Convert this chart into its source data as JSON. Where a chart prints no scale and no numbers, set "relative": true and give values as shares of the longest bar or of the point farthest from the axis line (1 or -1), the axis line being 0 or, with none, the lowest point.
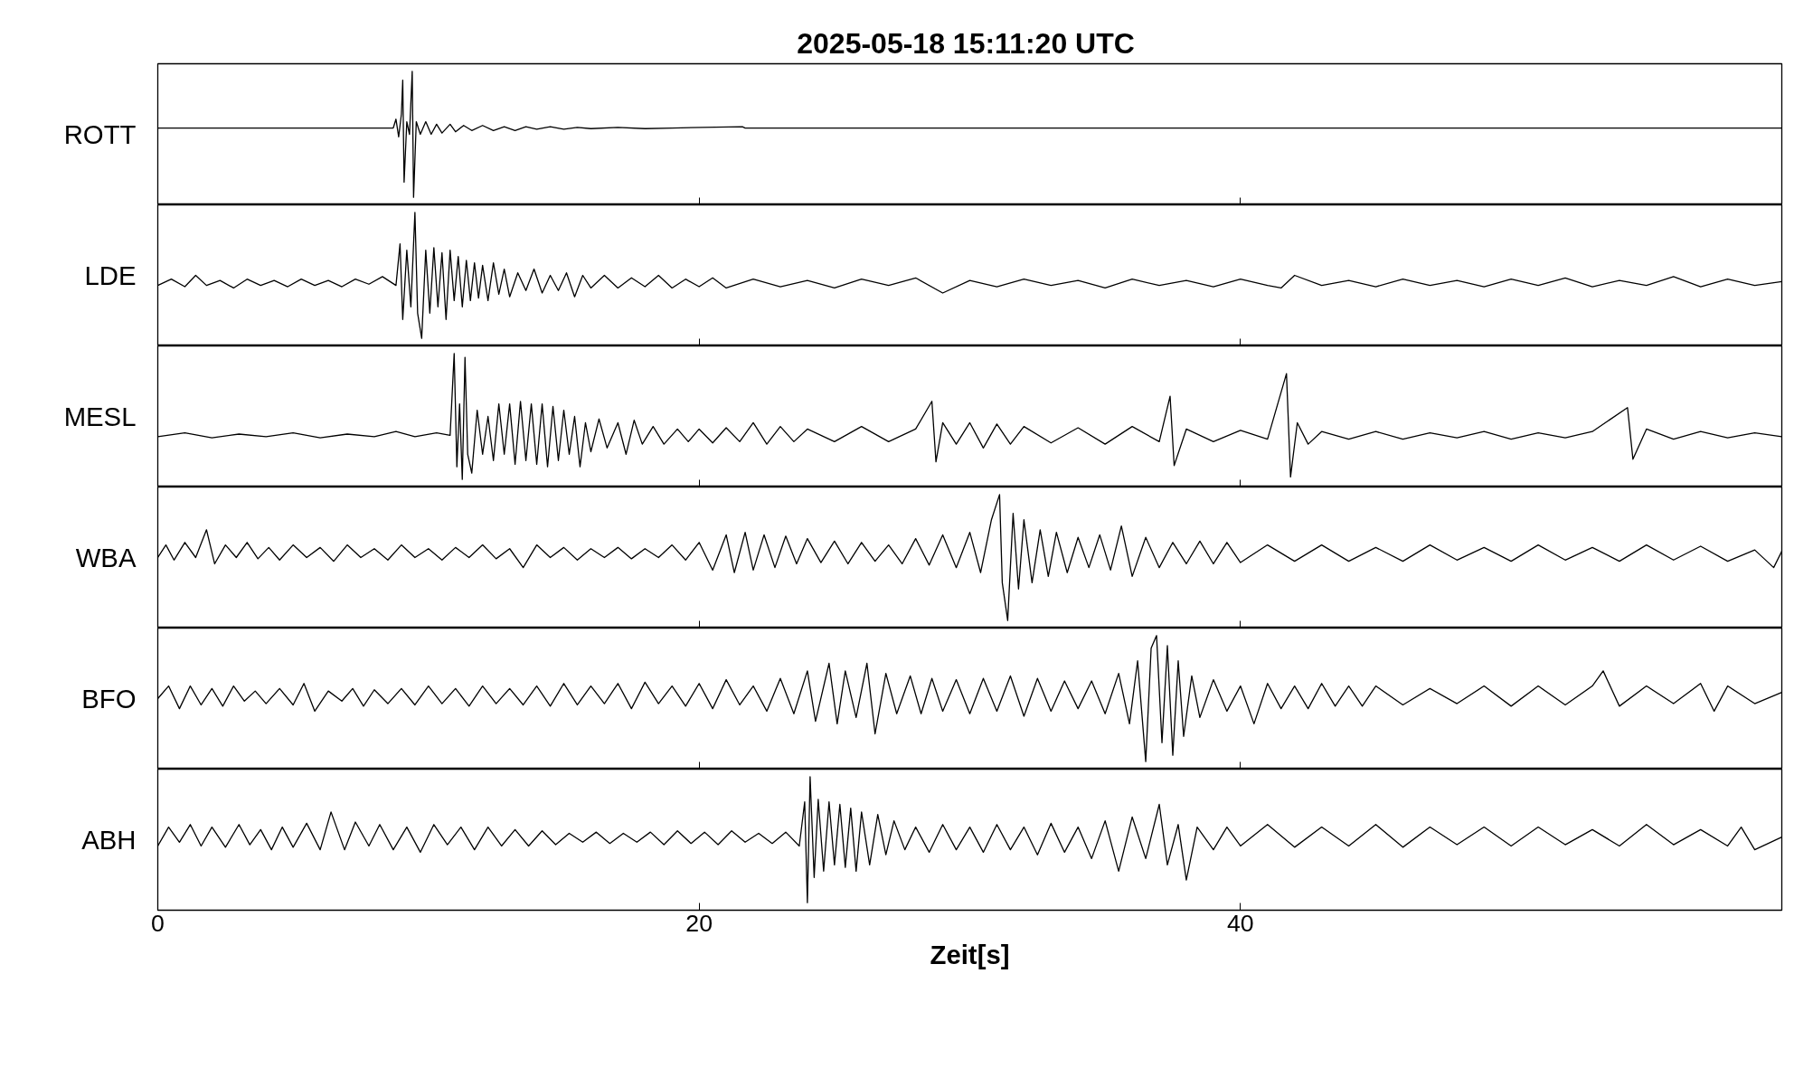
{
  "chart_data": [
    {
      "type": "line",
      "relative": true,
      "title": "2025-05-18  15:11:20 UTC",
      "xlim": [
        0,
        60
      ],
      "xticks": [
        0,
        20,
        40
      ],
      "tick_labels": false,
      "series": [
        {
          "name": "ROTT",
          "color": "#000000",
          "x": [
            0,
            8.7,
            8.8,
            8.9,
            9.0,
            9.05,
            9.1,
            9.2,
            9.3,
            9.4,
            9.45,
            9.55,
            9.7,
            9.9,
            10.1,
            10.3,
            10.5,
            10.8,
            11.0,
            11.3,
            11.6,
            12.0,
            12.4,
            12.8,
            13.2,
            13.6,
            14.0,
            14.5,
            15.0,
            15.5,
            16.0,
            17,
            18,
            19,
            21.6,
            21.7,
            60
          ],
          "values": [
            0.55,
            0.55,
            0.62,
            0.48,
            0.66,
            0.93,
            0.12,
            0.6,
            0.5,
            1.0,
            0.0,
            0.6,
            0.5,
            0.6,
            0.5,
            0.58,
            0.51,
            0.58,
            0.52,
            0.57,
            0.53,
            0.57,
            0.53,
            0.56,
            0.53,
            0.56,
            0.54,
            0.56,
            0.54,
            0.555,
            0.545,
            0.555,
            0.545,
            0.55,
            0.56,
            0.55,
            0.55
          ]
        }
      ]
    },
    {
      "type": "line",
      "relative": true,
      "xlim": [
        0,
        60
      ],
      "xticks": [
        0,
        20,
        40
      ],
      "tick_labels": false,
      "series": [
        {
          "name": "LDE",
          "color": "#000000",
          "x": [
            0,
            0.5,
            1,
            1.4,
            1.8,
            2.3,
            2.8,
            3.3,
            3.8,
            4.3,
            4.8,
            5.3,
            5.8,
            6.3,
            6.8,
            7.3,
            7.8,
            8.3,
            8.8,
            8.95,
            9.05,
            9.2,
            9.35,
            9.5,
            9.6,
            9.75,
            9.9,
            10.05,
            10.2,
            10.35,
            10.5,
            10.65,
            10.8,
            10.95,
            11.1,
            11.25,
            11.4,
            11.55,
            11.7,
            11.85,
            12.0,
            12.2,
            12.4,
            12.6,
            12.8,
            13.0,
            13.3,
            13.6,
            13.9,
            14.2,
            14.5,
            14.8,
            15.1,
            15.4,
            15.7,
            16.0,
            16.5,
            17,
            17.5,
            18,
            18.5,
            19,
            19.5,
            20,
            20.5,
            21,
            22,
            23,
            24,
            25,
            26,
            27,
            28,
            29,
            30,
            31,
            32,
            33,
            34,
            35,
            36,
            37,
            38,
            39,
            40,
            41,
            41.5,
            42,
            43,
            44,
            45,
            46,
            47,
            48,
            49,
            50,
            51,
            52,
            53,
            54,
            55,
            56,
            57,
            58,
            59,
            60
          ],
          "values": [
            0.42,
            0.47,
            0.41,
            0.5,
            0.42,
            0.46,
            0.4,
            0.47,
            0.42,
            0.46,
            0.41,
            0.47,
            0.42,
            0.46,
            0.41,
            0.47,
            0.43,
            0.49,
            0.42,
            0.75,
            0.15,
            0.7,
            0.25,
            1.0,
            0.2,
            0.0,
            0.7,
            0.2,
            0.72,
            0.25,
            0.68,
            0.15,
            0.7,
            0.3,
            0.65,
            0.25,
            0.62,
            0.3,
            0.6,
            0.32,
            0.58,
            0.3,
            0.6,
            0.35,
            0.55,
            0.33,
            0.52,
            0.38,
            0.55,
            0.36,
            0.5,
            0.38,
            0.52,
            0.33,
            0.5,
            0.4,
            0.5,
            0.4,
            0.48,
            0.41,
            0.5,
            0.4,
            0.47,
            0.41,
            0.48,
            0.4,
            0.47,
            0.41,
            0.46,
            0.4,
            0.47,
            0.42,
            0.48,
            0.36,
            0.46,
            0.41,
            0.47,
            0.42,
            0.46,
            0.4,
            0.47,
            0.42,
            0.46,
            0.41,
            0.47,
            0.42,
            0.4,
            0.5,
            0.42,
            0.46,
            0.41,
            0.47,
            0.42,
            0.46,
            0.41,
            0.47,
            0.42,
            0.48,
            0.41,
            0.46,
            0.42,
            0.49,
            0.41,
            0.47,
            0.42,
            0.45
          ]
        }
      ]
    },
    {
      "type": "line",
      "relative": true,
      "xlim": [
        0,
        60
      ],
      "xticks": [
        0,
        20,
        40
      ],
      "tick_labels": false,
      "series": [
        {
          "name": "MESL",
          "color": "#000000",
          "x": [
            0,
            1,
            2,
            3,
            4,
            5,
            6,
            7,
            8,
            8.8,
            9.5,
            10.3,
            10.8,
            10.95,
            11.05,
            11.15,
            11.25,
            11.35,
            11.45,
            11.6,
            11.8,
            12.0,
            12.2,
            12.4,
            12.6,
            12.8,
            13.0,
            13.2,
            13.4,
            13.6,
            13.8,
            14.0,
            14.2,
            14.4,
            14.6,
            14.8,
            15.0,
            15.2,
            15.4,
            15.6,
            15.8,
            16.0,
            16.3,
            16.6,
            17.0,
            17.3,
            17.6,
            17.9,
            18.3,
            18.7,
            19.2,
            19.6,
            20,
            20.5,
            21,
            21.5,
            22,
            22.5,
            23,
            23.5,
            24,
            25,
            26,
            27,
            28,
            28.6,
            28.75,
            29,
            29.5,
            30,
            30.5,
            31,
            31.5,
            32,
            33,
            34,
            35,
            36,
            37,
            37.4,
            37.55,
            38,
            39,
            40,
            41,
            41.7,
            41.85,
            42.1,
            42.5,
            43,
            44,
            45,
            46,
            47,
            48,
            49,
            50,
            51,
            52,
            53,
            54.3,
            54.5,
            55,
            56,
            57,
            58,
            59,
            60
          ],
          "values": [
            0.34,
            0.37,
            0.33,
            0.36,
            0.34,
            0.37,
            0.33,
            0.36,
            0.34,
            0.38,
            0.34,
            0.37,
            0.35,
            1.0,
            0.1,
            0.6,
            0.0,
            0.97,
            0.2,
            0.05,
            0.55,
            0.2,
            0.5,
            0.15,
            0.6,
            0.2,
            0.6,
            0.12,
            0.62,
            0.15,
            0.6,
            0.12,
            0.6,
            0.1,
            0.58,
            0.15,
            0.55,
            0.2,
            0.5,
            0.1,
            0.45,
            0.22,
            0.48,
            0.25,
            0.45,
            0.2,
            0.47,
            0.28,
            0.42,
            0.28,
            0.4,
            0.3,
            0.4,
            0.29,
            0.41,
            0.3,
            0.45,
            0.28,
            0.42,
            0.3,
            0.4,
            0.3,
            0.42,
            0.3,
            0.4,
            0.62,
            0.14,
            0.45,
            0.28,
            0.45,
            0.25,
            0.44,
            0.28,
            0.42,
            0.29,
            0.41,
            0.28,
            0.42,
            0.3,
            0.66,
            0.11,
            0.4,
            0.3,
            0.39,
            0.32,
            0.84,
            0.02,
            0.45,
            0.28,
            0.38,
            0.32,
            0.38,
            0.32,
            0.37,
            0.33,
            0.38,
            0.32,
            0.37,
            0.33,
            0.38,
            0.57,
            0.16,
            0.4,
            0.32,
            0.38,
            0.33,
            0.37,
            0.34
          ]
        }
      ]
    },
    {
      "type": "line",
      "relative": true,
      "xlim": [
        0,
        60
      ],
      "xticks": [
        0,
        20,
        40
      ],
      "tick_labels": false,
      "series": [
        {
          "name": "WBA",
          "color": "#000000",
          "x": [
            0,
            0.3,
            0.6,
            1,
            1.4,
            1.8,
            2.1,
            2.5,
            2.9,
            3.3,
            3.7,
            4.1,
            4.5,
            5,
            5.5,
            6,
            6.5,
            7,
            7.5,
            8,
            8.5,
            9,
            9.5,
            10,
            10.5,
            11,
            11.5,
            12,
            12.5,
            13,
            13.5,
            14,
            14.5,
            15,
            15.5,
            16,
            16.5,
            17,
            17.5,
            18,
            18.5,
            19,
            19.5,
            20,
            20.5,
            21,
            21.3,
            21.7,
            22,
            22.4,
            22.8,
            23.2,
            23.6,
            24,
            24.5,
            25,
            25.5,
            26,
            26.5,
            27,
            27.5,
            28,
            28.5,
            29,
            29.5,
            30,
            30.4,
            30.8,
            31.1,
            31.2,
            31.4,
            31.6,
            31.8,
            32,
            32.3,
            32.6,
            32.9,
            33.2,
            33.6,
            34,
            34.4,
            34.8,
            35.2,
            35.6,
            36,
            36.5,
            37,
            37.5,
            38,
            38.5,
            39,
            39.5,
            40,
            41,
            42,
            43,
            44,
            45,
            46,
            47,
            48,
            49,
            50,
            51,
            52,
            53,
            54,
            55,
            56,
            57,
            58,
            59,
            59.7,
            60
          ],
          "values": [
            0.5,
            0.6,
            0.48,
            0.62,
            0.5,
            0.72,
            0.45,
            0.6,
            0.5,
            0.62,
            0.49,
            0.58,
            0.48,
            0.6,
            0.5,
            0.58,
            0.47,
            0.6,
            0.5,
            0.57,
            0.48,
            0.6,
            0.5,
            0.57,
            0.48,
            0.58,
            0.5,
            0.6,
            0.49,
            0.57,
            0.42,
            0.6,
            0.5,
            0.58,
            0.48,
            0.57,
            0.5,
            0.58,
            0.49,
            0.57,
            0.5,
            0.6,
            0.48,
            0.62,
            0.4,
            0.68,
            0.38,
            0.7,
            0.4,
            0.68,
            0.42,
            0.67,
            0.45,
            0.65,
            0.46,
            0.63,
            0.45,
            0.62,
            0.47,
            0.6,
            0.45,
            0.65,
            0.44,
            0.68,
            0.42,
            0.7,
            0.38,
            0.8,
            1.0,
            0.3,
            0.0,
            0.85,
            0.25,
            0.8,
            0.3,
            0.72,
            0.35,
            0.7,
            0.38,
            0.66,
            0.42,
            0.68,
            0.4,
            0.75,
            0.35,
            0.66,
            0.42,
            0.62,
            0.45,
            0.63,
            0.45,
            0.62,
            0.46,
            0.6,
            0.47,
            0.6,
            0.47,
            0.58,
            0.47,
            0.6,
            0.48,
            0.58,
            0.47,
            0.6,
            0.48,
            0.58,
            0.47,
            0.6,
            0.48,
            0.59,
            0.47,
            0.56,
            0.42,
            0.55
          ]
        }
      ]
    },
    {
      "type": "line",
      "relative": true,
      "xlim": [
        0,
        60
      ],
      "xticks": [
        0,
        20,
        40
      ],
      "tick_labels": false,
      "series": [
        {
          "name": "BFO",
          "color": "#000000",
          "x": [
            0,
            0.4,
            0.8,
            1.2,
            1.6,
            2,
            2.4,
            2.8,
            3.2,
            3.6,
            4,
            4.5,
            5,
            5.4,
            5.8,
            6.3,
            6.8,
            7.2,
            7.6,
            8,
            8.5,
            9,
            9.5,
            10,
            10.5,
            11,
            11.5,
            12,
            12.5,
            13,
            13.5,
            14,
            14.5,
            15,
            15.5,
            16,
            16.5,
            17,
            17.5,
            18,
            18.5,
            19,
            19.5,
            20,
            20.5,
            21,
            21.5,
            22,
            22.5,
            23,
            23.5,
            24,
            24.3,
            24.8,
            25.1,
            25.4,
            25.8,
            26.2,
            26.5,
            26.9,
            27.3,
            27.8,
            28.2,
            28.6,
            29,
            29.5,
            30,
            30.5,
            31,
            31.5,
            32,
            32.5,
            33,
            33.5,
            34,
            34.5,
            35,
            35.5,
            35.9,
            36.2,
            36.5,
            36.7,
            36.9,
            37.1,
            37.3,
            37.5,
            37.7,
            37.9,
            38.2,
            38.5,
            39,
            39.5,
            40,
            40.5,
            41,
            41.5,
            42,
            42.5,
            43,
            43.5,
            44,
            44.5,
            45,
            46,
            47,
            48,
            49,
            50,
            51,
            52,
            53,
            53.4,
            54,
            55,
            56,
            57,
            57.5,
            58,
            59,
            60
          ],
          "values": [
            0.5,
            0.6,
            0.42,
            0.6,
            0.45,
            0.58,
            0.44,
            0.6,
            0.48,
            0.56,
            0.46,
            0.58,
            0.45,
            0.62,
            0.4,
            0.56,
            0.48,
            0.58,
            0.44,
            0.57,
            0.46,
            0.58,
            0.45,
            0.6,
            0.46,
            0.58,
            0.44,
            0.6,
            0.46,
            0.58,
            0.45,
            0.6,
            0.44,
            0.62,
            0.45,
            0.6,
            0.46,
            0.62,
            0.42,
            0.63,
            0.46,
            0.6,
            0.44,
            0.62,
            0.42,
            0.65,
            0.45,
            0.6,
            0.4,
            0.66,
            0.38,
            0.72,
            0.32,
            0.78,
            0.3,
            0.72,
            0.35,
            0.78,
            0.22,
            0.7,
            0.38,
            0.68,
            0.38,
            0.66,
            0.4,
            0.65,
            0.38,
            0.66,
            0.4,
            0.68,
            0.36,
            0.66,
            0.4,
            0.64,
            0.42,
            0.64,
            0.38,
            0.7,
            0.3,
            0.8,
            0.0,
            0.9,
            1.0,
            0.15,
            0.92,
            0.05,
            0.8,
            0.2,
            0.68,
            0.35,
            0.65,
            0.4,
            0.6,
            0.3,
            0.62,
            0.42,
            0.6,
            0.42,
            0.62,
            0.44,
            0.6,
            0.44,
            0.6,
            0.45,
            0.58,
            0.46,
            0.6,
            0.44,
            0.6,
            0.45,
            0.6,
            0.72,
            0.44,
            0.6,
            0.46,
            0.62,
            0.4,
            0.6,
            0.46,
            0.55
          ]
        }
      ]
    },
    {
      "type": "line",
      "relative": true,
      "xlabel": "Zeit[s]",
      "xlim": [
        0,
        60
      ],
      "xticks": [
        0,
        20,
        40
      ],
      "tick_labels": "x",
      "series": [
        {
          "name": "ABH",
          "color": "#000000",
          "x": [
            0,
            0.4,
            0.8,
            1.2,
            1.6,
            2,
            2.5,
            3,
            3.4,
            3.8,
            4.2,
            4.6,
            5,
            5.5,
            6,
            6.4,
            6.9,
            7.3,
            7.8,
            8.2,
            8.7,
            9.2,
            9.7,
            10.2,
            10.7,
            11.2,
            11.7,
            12.2,
            12.7,
            13.2,
            13.7,
            14.2,
            14.7,
            15.2,
            15.7,
            16.2,
            16.7,
            17.2,
            17.7,
            18.2,
            18.7,
            19.2,
            19.7,
            20.2,
            20.7,
            21.2,
            21.7,
            22.2,
            22.7,
            23.2,
            23.7,
            23.9,
            24.0,
            24.1,
            24.25,
            24.4,
            24.6,
            24.8,
            25.0,
            25.2,
            25.4,
            25.6,
            25.8,
            26.0,
            26.3,
            26.6,
            26.9,
            27.2,
            27.6,
            28,
            28.5,
            29,
            29.5,
            30,
            30.5,
            31,
            31.5,
            32,
            32.5,
            33,
            33.5,
            34,
            34.5,
            35,
            35.5,
            36,
            36.5,
            37,
            37.3,
            37.7,
            38,
            38.4,
            39,
            39.5,
            40,
            41,
            42,
            43,
            44,
            45,
            46,
            47,
            48,
            49,
            50,
            51,
            52,
            53,
            54,
            55,
            56,
            57,
            58,
            58.5,
            59,
            60
          ],
          "values": [
            0.45,
            0.6,
            0.48,
            0.62,
            0.45,
            0.6,
            0.44,
            0.62,
            0.46,
            0.58,
            0.42,
            0.6,
            0.44,
            0.63,
            0.42,
            0.72,
            0.42,
            0.64,
            0.45,
            0.62,
            0.42,
            0.6,
            0.4,
            0.62,
            0.46,
            0.6,
            0.42,
            0.6,
            0.45,
            0.58,
            0.45,
            0.57,
            0.46,
            0.55,
            0.48,
            0.56,
            0.47,
            0.55,
            0.48,
            0.56,
            0.46,
            0.57,
            0.47,
            0.56,
            0.46,
            0.57,
            0.48,
            0.55,
            0.47,
            0.56,
            0.45,
            0.8,
            0.0,
            1.0,
            0.2,
            0.82,
            0.25,
            0.8,
            0.3,
            0.78,
            0.28,
            0.75,
            0.25,
            0.72,
            0.3,
            0.7,
            0.38,
            0.65,
            0.42,
            0.6,
            0.4,
            0.62,
            0.42,
            0.6,
            0.4,
            0.62,
            0.42,
            0.6,
            0.38,
            0.63,
            0.4,
            0.6,
            0.35,
            0.65,
            0.25,
            0.68,
            0.35,
            0.78,
            0.3,
            0.62,
            0.18,
            0.6,
            0.42,
            0.6,
            0.45,
            0.62,
            0.44,
            0.6,
            0.45,
            0.62,
            0.44,
            0.6,
            0.46,
            0.6,
            0.45,
            0.6,
            0.46,
            0.58,
            0.45,
            0.62,
            0.46,
            0.58,
            0.45,
            0.6,
            0.42,
            0.52
          ]
        }
      ]
    }
  ]
}
